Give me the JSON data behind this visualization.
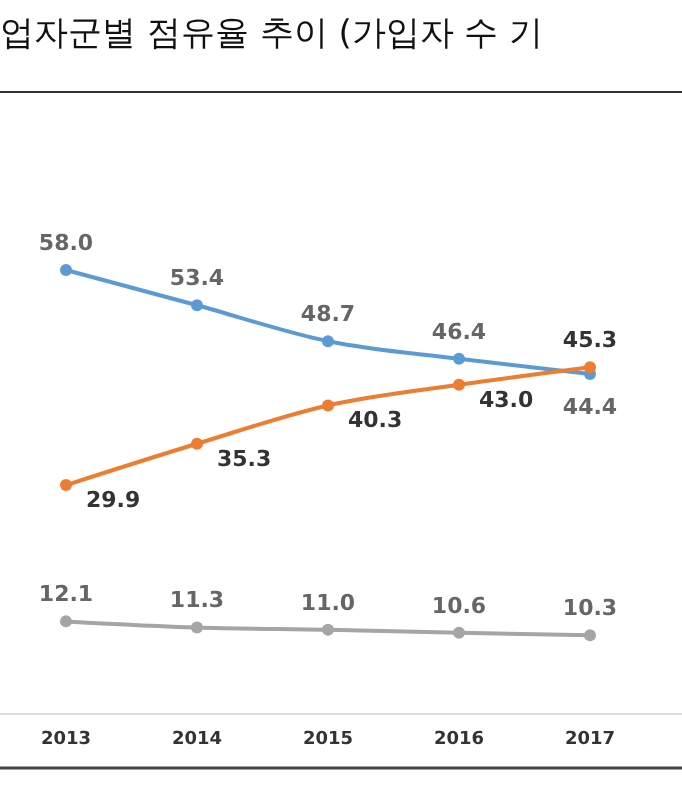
{
  "chart_data": {
    "type": "line",
    "title": "업자군별 점유율 추이 (가입자 수 기",
    "categories": [
      "2013",
      "2014",
      "2015",
      "2016",
      "2017"
    ],
    "series": [
      {
        "color": "#5b9bd5",
        "values": [
          58.0,
          53.4,
          48.7,
          46.4,
          44.4
        ],
        "value_labels": [
          "58.0",
          "53.4",
          "48.7",
          "46.4",
          "44.4"
        ]
      },
      {
        "color": "#ed7d31",
        "values": [
          29.9,
          35.3,
          40.3,
          43.0,
          45.3
        ],
        "value_labels": [
          "29.9",
          "35.3",
          "40.3",
          "43.0",
          "45.3"
        ]
      },
      {
        "color": "#a5a5a5",
        "values": [
          12.1,
          11.3,
          11.0,
          10.6,
          10.3
        ],
        "value_labels": [
          "12.1",
          "11.3",
          "11.0",
          "10.6",
          "10.3"
        ]
      }
    ],
    "marker": "circle"
  }
}
